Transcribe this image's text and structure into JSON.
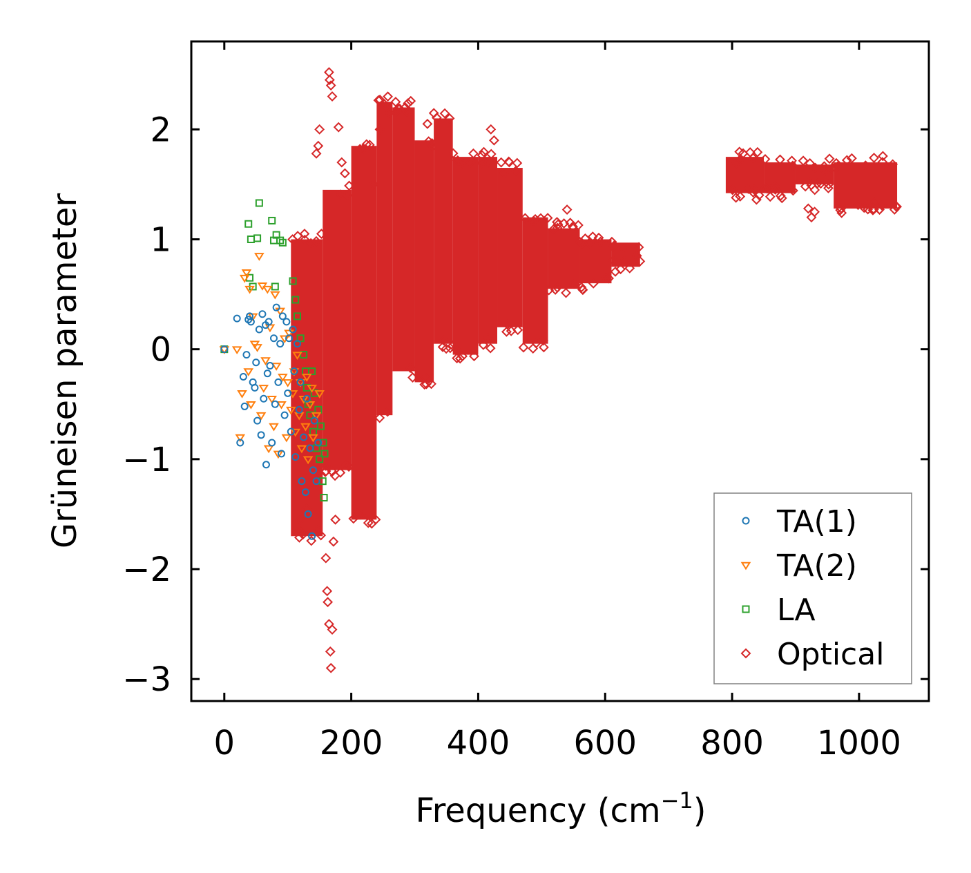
{
  "chart_data": {
    "type": "scatter",
    "title": "",
    "xlabel": "Frequency (cm",
    "xlabel_sup": "−1",
    "xlabel_close": ")",
    "ylabel": "Grüneisen parameter",
    "xlim": [
      -52,
      1110
    ],
    "ylim": [
      -3.2,
      2.8
    ],
    "x_ticks": [
      0,
      200,
      400,
      600,
      800,
      1000
    ],
    "x_tick_labels": [
      "0",
      "200",
      "400",
      "600",
      "800",
      "1000"
    ],
    "y_ticks": [
      -3,
      -2,
      -1,
      0,
      1,
      2
    ],
    "y_tick_labels": [
      "−3",
      "−2",
      "−1",
      "0",
      "1",
      "2"
    ],
    "grid": false,
    "legend_position": "bottom-right",
    "series": [
      {
        "name": "TA(1)",
        "marker": "circle",
        "color": "#1f77b4",
        "points": [
          [
            0,
            0
          ],
          [
            20,
            0.28
          ],
          [
            25,
            -0.85
          ],
          [
            30,
            -0.25
          ],
          [
            32,
            -0.52
          ],
          [
            35,
            -0.05
          ],
          [
            38,
            0.27
          ],
          [
            40,
            0.3
          ],
          [
            42,
            0.25
          ],
          [
            45,
            -0.3
          ],
          [
            48,
            -0.35
          ],
          [
            50,
            -0.12
          ],
          [
            52,
            -0.65
          ],
          [
            55,
            0.18
          ],
          [
            58,
            -0.78
          ],
          [
            60,
            0.32
          ],
          [
            62,
            -0.45
          ],
          [
            65,
            0.22
          ],
          [
            66,
            -1.05
          ],
          [
            68,
            -0.22
          ],
          [
            70,
            0.25
          ],
          [
            72,
            -0.15
          ],
          [
            75,
            -0.85
          ],
          [
            78,
            0.1
          ],
          [
            80,
            -0.5
          ],
          [
            82,
            0.38
          ],
          [
            85,
            -0.3
          ],
          [
            88,
            0.05
          ],
          [
            90,
            -0.95
          ],
          [
            92,
            0.3
          ],
          [
            95,
            -0.6
          ],
          [
            98,
            0.25
          ],
          [
            100,
            -0.4
          ],
          [
            102,
            0.1
          ],
          [
            105,
            -0.75
          ],
          [
            108,
            0.18
          ],
          [
            110,
            -0.2
          ],
          [
            112,
            -0.98
          ],
          [
            115,
            0.05
          ],
          [
            118,
            -0.55
          ],
          [
            120,
            -0.3
          ],
          [
            122,
            -1.2
          ],
          [
            125,
            -0.8
          ],
          [
            128,
            -1.3
          ],
          [
            130,
            -0.45
          ],
          [
            132,
            -1.5
          ],
          [
            135,
            -0.9
          ],
          [
            138,
            -1.7
          ],
          [
            140,
            -1.1
          ],
          [
            142,
            -0.65
          ],
          [
            145,
            -1.2
          ],
          [
            148,
            -0.85
          ]
        ]
      },
      {
        "name": "TA(2)",
        "marker": "triangle",
        "color": "#ff7f0e",
        "points": [
          [
            0,
            0
          ],
          [
            20,
            0
          ],
          [
            25,
            -0.8
          ],
          [
            28,
            -0.4
          ],
          [
            32,
            0.65
          ],
          [
            35,
            0.7
          ],
          [
            38,
            -0.2
          ],
          [
            40,
            0.55
          ],
          [
            42,
            -0.5
          ],
          [
            45,
            0.3
          ],
          [
            48,
            0.05
          ],
          [
            52,
            0.02
          ],
          [
            55,
            0.85
          ],
          [
            58,
            -0.6
          ],
          [
            60,
            0.58
          ],
          [
            62,
            -0.35
          ],
          [
            65,
            -0.1
          ],
          [
            68,
            0.55
          ],
          [
            70,
            -0.9
          ],
          [
            72,
            0.2
          ],
          [
            75,
            -0.45
          ],
          [
            78,
            -0.7
          ],
          [
            80,
            0.5
          ],
          [
            82,
            -0.15
          ],
          [
            85,
            -0.95
          ],
          [
            88,
            0.35
          ],
          [
            90,
            -0.5
          ],
          [
            92,
            -0.25
          ],
          [
            95,
            0.1
          ],
          [
            98,
            -0.8
          ],
          [
            100,
            -0.3
          ],
          [
            102,
            0.15
          ],
          [
            105,
            -0.55
          ],
          [
            108,
            -0.4
          ],
          [
            110,
            -0.2
          ],
          [
            112,
            -0.75
          ],
          [
            115,
            -0.05
          ],
          [
            118,
            -0.6
          ],
          [
            120,
            -0.3
          ],
          [
            122,
            -0.9
          ],
          [
            125,
            -0.45
          ],
          [
            128,
            -0.7
          ],
          [
            130,
            -0.25
          ],
          [
            132,
            -1.0
          ],
          [
            135,
            -0.5
          ],
          [
            138,
            -0.35
          ],
          [
            140,
            -0.8
          ],
          [
            145,
            -0.6
          ],
          [
            150,
            -0.4
          ]
        ]
      },
      {
        "name": "LA",
        "marker": "square",
        "color": "#2ca02c",
        "points": [
          [
            0,
            0
          ],
          [
            38,
            1.14
          ],
          [
            40,
            0.65
          ],
          [
            42,
            1.0
          ],
          [
            45,
            0.57
          ],
          [
            52,
            1.01
          ],
          [
            55,
            1.33
          ],
          [
            75,
            1.17
          ],
          [
            78,
            0.99
          ],
          [
            80,
            0.57
          ],
          [
            82,
            1.04
          ],
          [
            88,
            0.99
          ],
          [
            92,
            0.97
          ],
          [
            108,
            0.62
          ],
          [
            112,
            0.45
          ],
          [
            115,
            0.3
          ],
          [
            120,
            0.1
          ],
          [
            125,
            -0.05
          ],
          [
            128,
            -0.2
          ],
          [
            130,
            -0.35
          ],
          [
            132,
            -0.5
          ],
          [
            135,
            -0.6
          ],
          [
            138,
            -0.2
          ],
          [
            140,
            -0.75
          ],
          [
            142,
            -0.4
          ],
          [
            145,
            -0.9
          ],
          [
            148,
            -0.55
          ],
          [
            150,
            -1.0
          ],
          [
            152,
            -0.7
          ],
          [
            155,
            -1.2
          ],
          [
            156,
            -0.85
          ],
          [
            157,
            -1.35
          ],
          [
            158,
            -0.95
          ]
        ]
      },
      {
        "name": "Optical",
        "marker": "diamond",
        "color": "#d62728",
        "bands": [
          {
            "x": [
              105,
              155
            ],
            "ymin": -1.7,
            "ymax": 1.0
          },
          {
            "x": [
              155,
              200
            ],
            "ymin": -1.1,
            "ymax": 1.45
          },
          {
            "x": [
              200,
              240
            ],
            "ymin": -1.55,
            "ymax": 1.85
          },
          {
            "x": [
              240,
              265
            ],
            "ymin": -0.6,
            "ymax": 2.25
          },
          {
            "x": [
              265,
              300
            ],
            "ymin": -0.2,
            "ymax": 2.2
          },
          {
            "x": [
              300,
              330
            ],
            "ymin": -0.3,
            "ymax": 1.9
          },
          {
            "x": [
              330,
              360
            ],
            "ymin": 0.05,
            "ymax": 2.1
          },
          {
            "x": [
              360,
              400
            ],
            "ymin": -0.05,
            "ymax": 1.75
          },
          {
            "x": [
              400,
              430
            ],
            "ymin": 0.05,
            "ymax": 1.75
          },
          {
            "x": [
              430,
              470
            ],
            "ymin": 0.2,
            "ymax": 1.65
          },
          {
            "x": [
              470,
              510
            ],
            "ymin": 0.05,
            "ymax": 1.2
          },
          {
            "x": [
              510,
              560
            ],
            "ymin": 0.55,
            "ymax": 1.1
          },
          {
            "x": [
              560,
              610
            ],
            "ymin": 0.6,
            "ymax": 1.0
          },
          {
            "x": [
              610,
              655
            ],
            "ymin": 0.75,
            "ymax": 0.97
          },
          {
            "x": [
              790,
              850
            ],
            "ymin": 1.42,
            "ymax": 1.75
          },
          {
            "x": [
              850,
              900
            ],
            "ymin": 1.42,
            "ymax": 1.7
          },
          {
            "x": [
              900,
              960
            ],
            "ymin": 1.5,
            "ymax": 1.68
          },
          {
            "x": [
              960,
              1060
            ],
            "ymin": 1.28,
            "ymax": 1.7
          }
        ],
        "points": [
          [
            165,
            2.52
          ],
          [
            166,
            2.45
          ],
          [
            168,
            2.4
          ],
          [
            170,
            2.3
          ],
          [
            150,
            2.0
          ],
          [
            148,
            1.85
          ],
          [
            145,
            1.78
          ],
          [
            180,
            2.02
          ],
          [
            185,
            1.7
          ],
          [
            190,
            1.6
          ],
          [
            160,
            -1.9
          ],
          [
            162,
            -2.2
          ],
          [
            165,
            -2.5
          ],
          [
            167,
            -2.75
          ],
          [
            168,
            -2.9
          ],
          [
            163,
            -2.3
          ],
          [
            170,
            -2.55
          ],
          [
            172,
            -1.75
          ],
          [
            175,
            -1.55
          ],
          [
            120,
            -1.55
          ],
          [
            118,
            -1.65
          ],
          [
            130,
            -1.45
          ],
          [
            235,
            1.5
          ],
          [
            245,
            2.0
          ],
          [
            260,
            2.15
          ],
          [
            270,
            2.25
          ],
          [
            285,
            2.2
          ],
          [
            320,
            2.05
          ],
          [
            355,
            2.1
          ],
          [
            420,
            2.0
          ],
          [
            425,
            1.9
          ],
          [
            540,
            1.27
          ],
          [
            545,
            1.15
          ],
          [
            920,
            1.28
          ],
          [
            925,
            1.2
          ],
          [
            930,
            1.25
          ],
          [
            1058,
            1.3
          ],
          [
            655,
            0.8
          ],
          [
            650,
            0.85
          ]
        ]
      }
    ]
  }
}
